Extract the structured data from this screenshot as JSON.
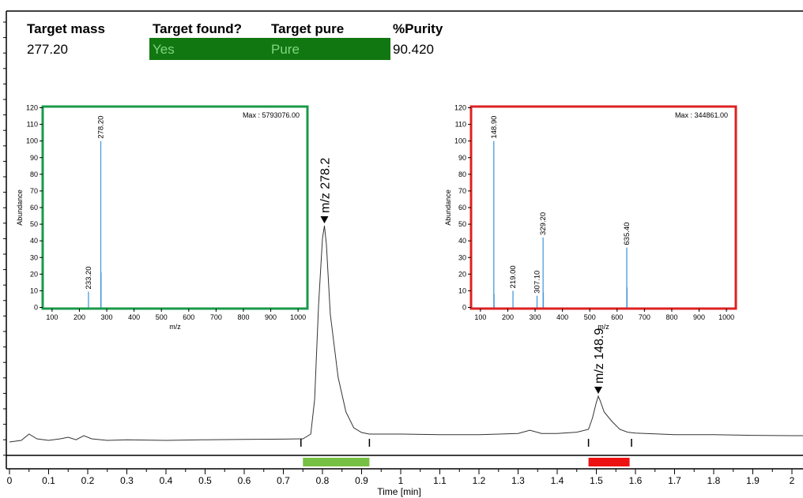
{
  "summary": {
    "headers": [
      "Target mass",
      "Target found?",
      "Target pure",
      "%Purity"
    ],
    "values": [
      "277.20",
      "Yes",
      "Pure",
      "90.420"
    ],
    "status_color": "#117711",
    "status_text_color": "#7fd67f"
  },
  "chart_data": [
    {
      "type": "line",
      "name": "chromatogram",
      "xlabel": "Time [min]",
      "ylabel": "",
      "xlim": [
        0,
        2.05
      ],
      "ylim": [
        0,
        100
      ],
      "xticks": [
        0,
        0.1,
        0.2,
        0.3,
        0.4,
        0.5,
        0.6,
        0.7,
        0.8,
        0.9,
        1,
        1.1,
        1.2,
        1.3,
        1.4,
        1.5,
        1.6,
        1.7,
        1.8,
        1.9,
        2
      ],
      "x": [
        0,
        0.03,
        0.05,
        0.07,
        0.1,
        0.13,
        0.15,
        0.17,
        0.19,
        0.21,
        0.25,
        0.3,
        0.4,
        0.5,
        0.6,
        0.7,
        0.75,
        0.77,
        0.78,
        0.79,
        0.8,
        0.805,
        0.81,
        0.82,
        0.84,
        0.86,
        0.88,
        0.9,
        0.92,
        1.0,
        1.1,
        1.2,
        1.3,
        1.33,
        1.36,
        1.4,
        1.45,
        1.48,
        1.49,
        1.5,
        1.505,
        1.51,
        1.52,
        1.54,
        1.56,
        1.58,
        1.6,
        1.7,
        1.8,
        1.9,
        2.0,
        2.05
      ],
      "y": [
        1.5,
        2,
        4,
        2.5,
        2,
        2.5,
        3,
        2.2,
        3.5,
        2.5,
        2,
        2.2,
        2.0,
        2.2,
        2.3,
        2.4,
        2.5,
        4,
        15,
        45,
        66,
        70,
        64,
        42,
        22,
        11,
        6,
        4.5,
        4,
        4,
        3.8,
        3.8,
        4.2,
        5.2,
        4.2,
        4.2,
        4.6,
        5.5,
        9,
        14,
        16,
        14.5,
        11,
        8,
        5.5,
        4.6,
        4.3,
        3.8,
        3.8,
        3.6,
        3.5,
        3.5
      ],
      "peak_labels": [
        {
          "text": "m/z 278.2",
          "x": 0.805,
          "y": 70
        },
        {
          "text": "m/z 148.9",
          "x": 1.505,
          "y": 16
        }
      ],
      "integration_bars": [
        {
          "x": [
            0.75,
            0.92
          ],
          "color": "#76c043"
        },
        {
          "x": [
            1.48,
            1.585
          ],
          "color": "#ee1111"
        }
      ],
      "integration_markers": [
        0.745,
        0.92,
        1.48,
        1.59
      ]
    },
    {
      "type": "bar",
      "name": "spectrum-target",
      "border_color": "#1a9a4a",
      "ylabel": "Abundance",
      "xlabel": "m/z",
      "max_text": "Max : 5793076.00",
      "xlim": [
        70,
        1030
      ],
      "ylim": [
        0,
        120
      ],
      "xticks": [
        100,
        200,
        300,
        400,
        500,
        600,
        700,
        800,
        900,
        1000
      ],
      "yticks": [
        0,
        10,
        20,
        30,
        40,
        50,
        60,
        70,
        80,
        90,
        100,
        110,
        120
      ],
      "bars": [
        {
          "x": 233.2,
          "y": 9.5,
          "label": "233.20"
        },
        {
          "x": 278.2,
          "y": 100,
          "label": "278.20"
        },
        {
          "x": 279.2,
          "y": 21,
          "label": ""
        }
      ]
    },
    {
      "type": "bar",
      "name": "spectrum-impurity",
      "border_color": "#dd2222",
      "ylabel": "Abundance",
      "xlabel": "m/z",
      "max_text": "Max : 344861.00",
      "xlim": [
        70,
        1030
      ],
      "ylim": [
        0,
        120
      ],
      "xticks": [
        100,
        200,
        300,
        400,
        500,
        600,
        700,
        800,
        900,
        1000
      ],
      "yticks": [
        0,
        10,
        20,
        30,
        40,
        50,
        60,
        70,
        80,
        90,
        100,
        110,
        120
      ],
      "bars": [
        {
          "x": 148.9,
          "y": 100,
          "label": "148.90"
        },
        {
          "x": 149.9,
          "y": 8,
          "label": ""
        },
        {
          "x": 219.0,
          "y": 10,
          "label": "219.00"
        },
        {
          "x": 307.1,
          "y": 7,
          "label": "307.10"
        },
        {
          "x": 329.2,
          "y": 42,
          "label": "329.20"
        },
        {
          "x": 330.2,
          "y": 9,
          "label": ""
        },
        {
          "x": 635.4,
          "y": 36,
          "label": "635.40"
        },
        {
          "x": 636.4,
          "y": 12,
          "label": ""
        }
      ]
    }
  ]
}
